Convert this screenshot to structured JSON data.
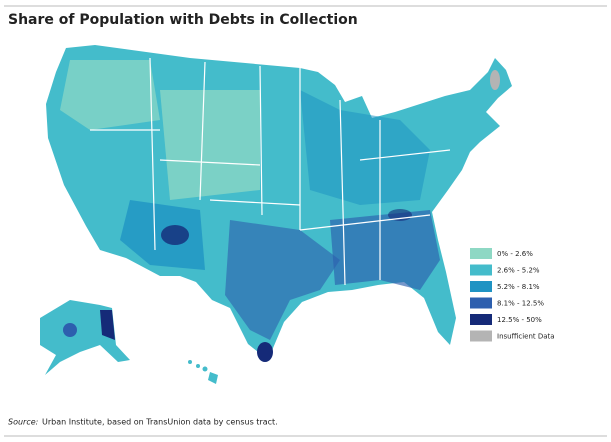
{
  "title": "Share of Population with Debts in Collection",
  "legend": {
    "items": [
      {
        "label": "0% - 2.6%",
        "color": "#8ed8c4"
      },
      {
        "label": "2.6% - 5.2%",
        "color": "#44bccb"
      },
      {
        "label": "5.2% - 8.1%",
        "color": "#1f93c3"
      },
      {
        "label": "8.1% - 12.5%",
        "color": "#2d5fae"
      },
      {
        "label": "12.5% - 50%",
        "color": "#152a78"
      },
      {
        "label": "Insufficient Data",
        "color": "#b4b4b4"
      }
    ]
  },
  "source": {
    "label": "Source:",
    "text": "Urban Institute, based on TransUnion data by census tract."
  }
}
